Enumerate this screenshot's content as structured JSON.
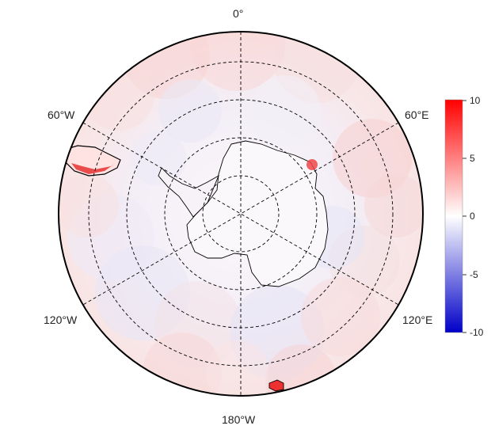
{
  "map": {
    "projection": "south polar stereographic",
    "longitude_labels": {
      "top": "0°",
      "upper_left": "60°W",
      "upper_right": "60°E",
      "lower_left": "120°W",
      "lower_right": "120°E",
      "bottom": "180°W"
    },
    "graticule_style": "dashed"
  },
  "colorbar": {
    "tick_labels": [
      "10",
      "5",
      "0",
      "-5",
      "-10"
    ],
    "range": [
      -10,
      10
    ],
    "colors": {
      "max": "#ff0000",
      "mid": "#ffffff",
      "min": "#0000c8"
    }
  }
}
